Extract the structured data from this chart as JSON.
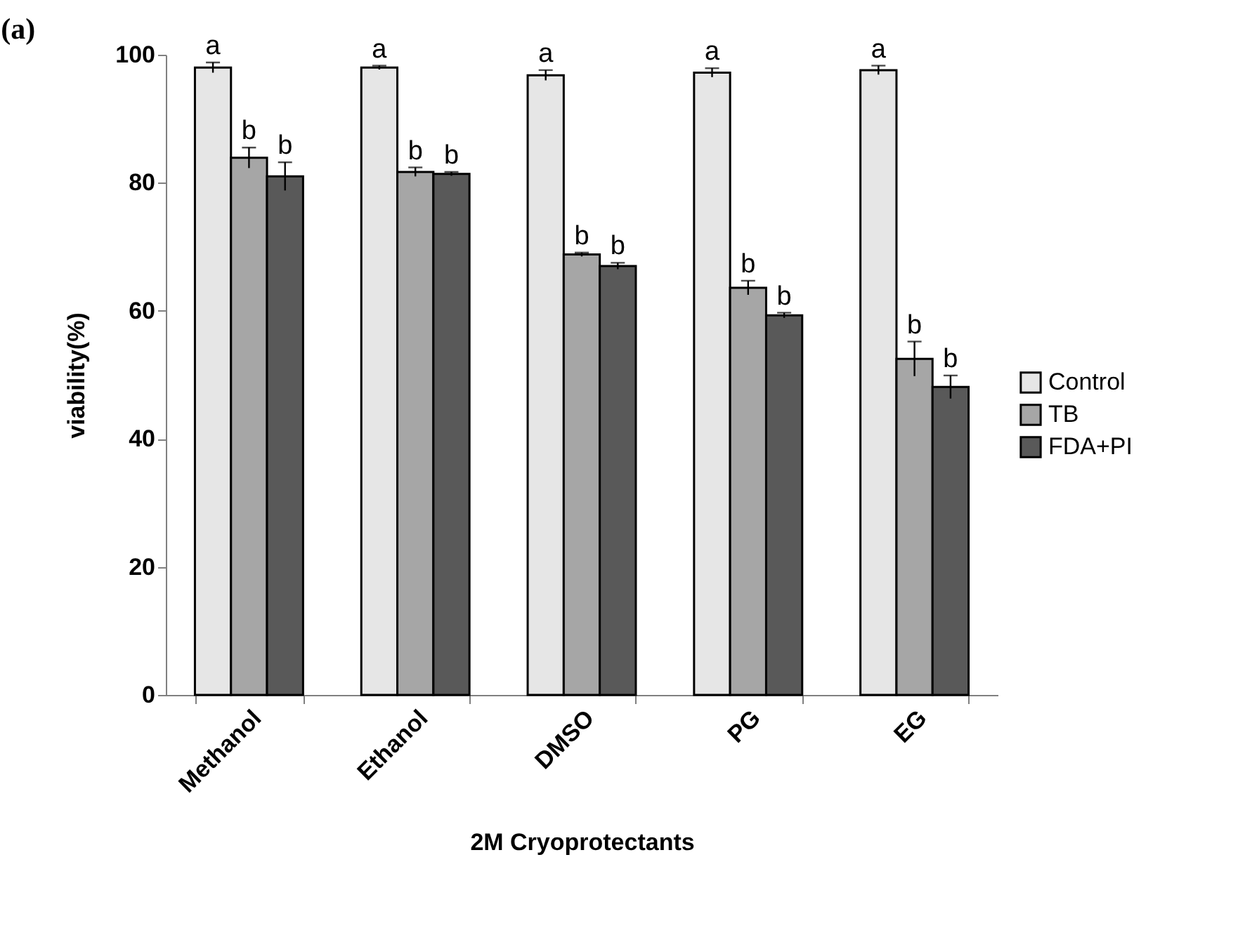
{
  "chart_data": {
    "type": "bar",
    "title": "(a)",
    "xlabel": "2M Cryoprotectants",
    "ylabel": "viability(%)",
    "categories": [
      "Methanol",
      "Ethanol",
      "DMSO",
      "PG",
      "EG"
    ],
    "series": [
      {
        "name": "Control",
        "color": "#e6e6e6",
        "values": [
          98.0,
          98.0,
          96.8,
          97.2,
          97.6
        ],
        "errors": [
          0.8,
          0.3,
          0.8,
          0.7,
          0.7
        ]
      },
      {
        "name": "TB",
        "color": "#a6a6a6",
        "values": [
          83.9,
          81.7,
          68.8,
          63.6,
          52.5
        ],
        "errors": [
          1.6,
          0.7,
          0.3,
          1.1,
          2.7
        ]
      },
      {
        "name": "FDA+PI",
        "color": "#595959",
        "values": [
          81.0,
          81.4,
          67.0,
          59.3,
          48.1
        ],
        "errors": [
          2.2,
          0.3,
          0.5,
          0.4,
          1.8
        ]
      }
    ],
    "ylim": [
      0,
      100
    ],
    "yticks": [
      0,
      20,
      40,
      60,
      80,
      100
    ],
    "grid": false,
    "legend": "right",
    "annotations": [
      "a",
      "b",
      "b",
      "a",
      "b",
      "b",
      "a",
      "b",
      "b",
      "a",
      "b",
      "b",
      "a",
      "b",
      "b"
    ]
  }
}
